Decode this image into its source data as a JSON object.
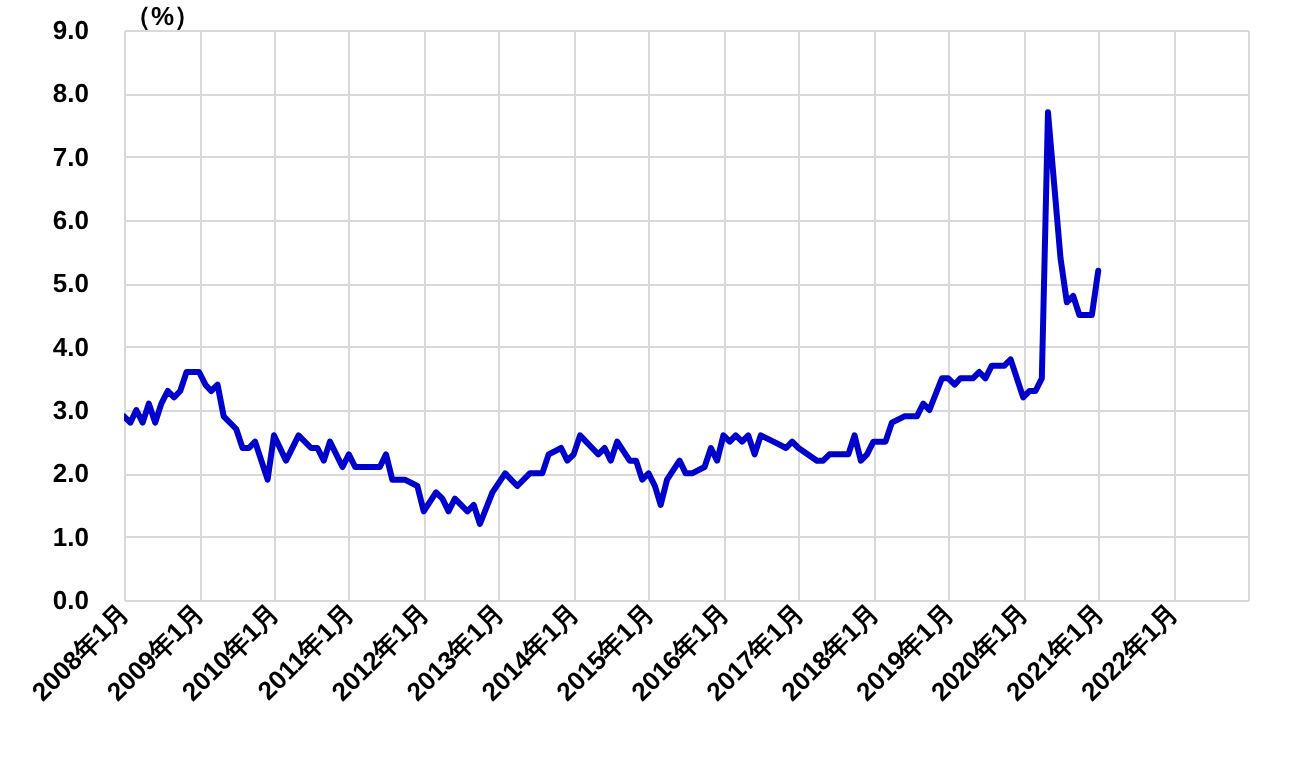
{
  "chart_data": {
    "type": "line",
    "ylabel": "（%）",
    "x": [
      "2008-01",
      "2008-02",
      "2008-03",
      "2008-04",
      "2008-05",
      "2008-06",
      "2008-07",
      "2008-08",
      "2008-09",
      "2008-10",
      "2008-11",
      "2009-01",
      "2009-02",
      "2009-03",
      "2009-04",
      "2009-05",
      "2009-07",
      "2009-08",
      "2009-09",
      "2009-10",
      "2009-12",
      "2010-01",
      "2010-03",
      "2010-05",
      "2010-07",
      "2010-08",
      "2010-09",
      "2010-10",
      "2010-12",
      "2011-01",
      "2011-02",
      "2011-06",
      "2011-07",
      "2011-08",
      "2011-10",
      "2011-12",
      "2012-01",
      "2012-03",
      "2012-04",
      "2012-05",
      "2012-06",
      "2012-08",
      "2012-09",
      "2012-10",
      "2012-12",
      "2013-02",
      "2013-04",
      "2013-06",
      "2013-08",
      "2013-09",
      "2013-11",
      "2013-12",
      "2014-01",
      "2014-02",
      "2014-04",
      "2014-05",
      "2014-06",
      "2014-07",
      "2014-08",
      "2014-10",
      "2014-11",
      "2014-12",
      "2015-01",
      "2015-02",
      "2015-03",
      "2015-04",
      "2015-06",
      "2015-07",
      "2015-08",
      "2015-10",
      "2015-11",
      "2015-12",
      "2016-01",
      "2016-02",
      "2016-03",
      "2016-04",
      "2016-05",
      "2016-06",
      "2016-07",
      "2016-09",
      "2016-11",
      "2016-12",
      "2017-01",
      "2017-04",
      "2017-05",
      "2017-06",
      "2017-09",
      "2017-10",
      "2017-11",
      "2017-12",
      "2018-01",
      "2018-03",
      "2018-04",
      "2018-06",
      "2018-08",
      "2018-09",
      "2018-10",
      "2018-12",
      "2019-01",
      "2019-02",
      "2019-03",
      "2019-05",
      "2019-06",
      "2019-07",
      "2019-08",
      "2019-10",
      "2019-11",
      "2020-01",
      "2020-02",
      "2020-03",
      "2020-04",
      "2020-05",
      "2020-07",
      "2020-08",
      "2020-09",
      "2020-10",
      "2020-12",
      "2021-01"
    ],
    "series": [
      {
        "color": "#0000cc",
        "values": [
          2.9,
          2.8,
          3.0,
          2.8,
          3.1,
          2.8,
          3.1,
          3.3,
          3.2,
          3.3,
          3.6,
          3.6,
          3.4,
          3.3,
          3.4,
          2.9,
          2.7,
          2.4,
          2.4,
          2.5,
          1.9,
          2.6,
          2.2,
          2.6,
          2.4,
          2.4,
          2.2,
          2.5,
          2.1,
          2.3,
          2.1,
          2.1,
          2.3,
          1.9,
          1.9,
          1.8,
          1.4,
          1.7,
          1.6,
          1.4,
          1.6,
          1.4,
          1.5,
          1.2,
          1.7,
          2.0,
          1.8,
          2.0,
          2.0,
          2.3,
          2.4,
          2.2,
          2.3,
          2.6,
          2.4,
          2.3,
          2.4,
          2.2,
          2.5,
          2.2,
          2.2,
          1.9,
          2.0,
          1.8,
          1.5,
          1.9,
          2.2,
          2.0,
          2.0,
          2.1,
          2.4,
          2.2,
          2.6,
          2.5,
          2.6,
          2.5,
          2.6,
          2.3,
          2.6,
          2.5,
          2.4,
          2.5,
          2.4,
          2.2,
          2.2,
          2.3,
          2.3,
          2.6,
          2.2,
          2.3,
          2.5,
          2.5,
          2.8,
          2.9,
          2.9,
          3.1,
          3.0,
          3.5,
          3.5,
          3.4,
          3.5,
          3.5,
          3.6,
          3.5,
          3.7,
          3.7,
          3.8,
          3.2,
          3.3,
          3.3,
          3.5,
          7.7,
          5.4,
          4.7,
          4.8,
          4.5,
          4.5,
          5.2
        ]
      }
    ],
    "xlim": [
      "2008-01",
      "2023-01"
    ],
    "xticks": [
      {
        "value": "2008-01",
        "label": "2008年1月"
      },
      {
        "value": "2009-01",
        "label": "2009年1月"
      },
      {
        "value": "2010-01",
        "label": "2010年1月"
      },
      {
        "value": "2011-01",
        "label": "2011年1月"
      },
      {
        "value": "2012-01",
        "label": "2012年1月"
      },
      {
        "value": "2013-01",
        "label": "2013年1月"
      },
      {
        "value": "2014-01",
        "label": "2014年1月"
      },
      {
        "value": "2015-01",
        "label": "2015年1月"
      },
      {
        "value": "2016-01",
        "label": "2016年1月"
      },
      {
        "value": "2017-01",
        "label": "2017年1月"
      },
      {
        "value": "2018-01",
        "label": "2018年1月"
      },
      {
        "value": "2019-01",
        "label": "2019年1月"
      },
      {
        "value": "2020-01",
        "label": "2020年1月"
      },
      {
        "value": "2021-01",
        "label": "2021年1月"
      },
      {
        "value": "2022-01",
        "label": "2022年1月"
      },
      {
        "value": "2023-01",
        "label": null
      }
    ],
    "ylim": [
      0,
      9
    ],
    "yticks": [
      {
        "value": 0,
        "label": "0.0"
      },
      {
        "value": 1,
        "label": "1.0"
      },
      {
        "value": 2,
        "label": "2.0"
      },
      {
        "value": 3,
        "label": "3.0"
      },
      {
        "value": 4,
        "label": "4.0"
      },
      {
        "value": 5,
        "label": "5.0"
      },
      {
        "value": 6,
        "label": "6.0"
      },
      {
        "value": 7,
        "label": "7.0"
      },
      {
        "value": 8,
        "label": "8.0"
      },
      {
        "value": 9,
        "label": "9.0"
      }
    ],
    "grid": true,
    "marker": "none",
    "line_style": "solid"
  }
}
